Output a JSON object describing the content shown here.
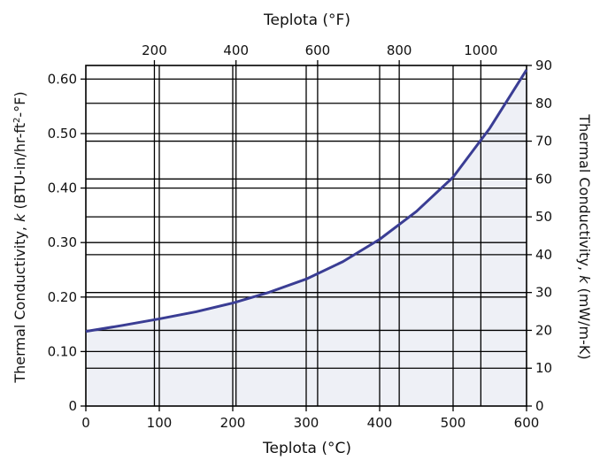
{
  "chart_data": {
    "type": "area",
    "bottom_axis": {
      "label": "Teplota (°C)",
      "range": [
        0,
        600
      ],
      "ticks": [
        0,
        100,
        200,
        300,
        400,
        500,
        600
      ],
      "tick_labels": [
        "0",
        "100",
        "200",
        "300",
        "400",
        "500",
        "600"
      ]
    },
    "top_axis": {
      "label": "Teplota (°F)",
      "ticks": [
        200,
        400,
        600,
        800,
        1000
      ],
      "tick_labels": [
        "200",
        "400",
        "600",
        "800",
        "1000"
      ]
    },
    "left_axis": {
      "label_prefix": "Thermal Conductivity, ",
      "label_symbol": "k",
      "label_units": " (BTU-in/hr-ft",
      "label_sup": "2",
      "label_end": "-°F)",
      "range": [
        0,
        0.625
      ],
      "ticks": [
        0,
        0.1,
        0.2,
        0.3,
        0.4,
        0.5,
        0.6
      ],
      "tick_labels": [
        "0",
        "0.10",
        "0.20",
        "0.30",
        "0.40",
        "0.50",
        "0.60"
      ]
    },
    "right_axis": {
      "label_prefix": "Thermal Conductivity, ",
      "label_symbol": "k",
      "label_units": " (mW/m-K)",
      "range": [
        0,
        90
      ],
      "ticks": [
        0,
        10,
        20,
        30,
        40,
        50,
        60,
        70,
        80,
        90
      ],
      "tick_labels": [
        "0",
        "10",
        "20",
        "30",
        "40",
        "50",
        "60",
        "70",
        "80",
        "90"
      ]
    },
    "grid": true,
    "series": [
      {
        "x": [
          0,
          50,
          100,
          150,
          200,
          250,
          300,
          350,
          400,
          450,
          500,
          550,
          600
        ],
        "y": [
          0.137,
          0.148,
          0.16,
          0.173,
          0.189,
          0.209,
          0.233,
          0.265,
          0.306,
          0.357,
          0.42,
          0.51,
          0.617
        ]
      }
    ],
    "colors": {
      "line": "#3a3d94",
      "fill": "#eef0f6",
      "grid": "#000000"
    }
  }
}
